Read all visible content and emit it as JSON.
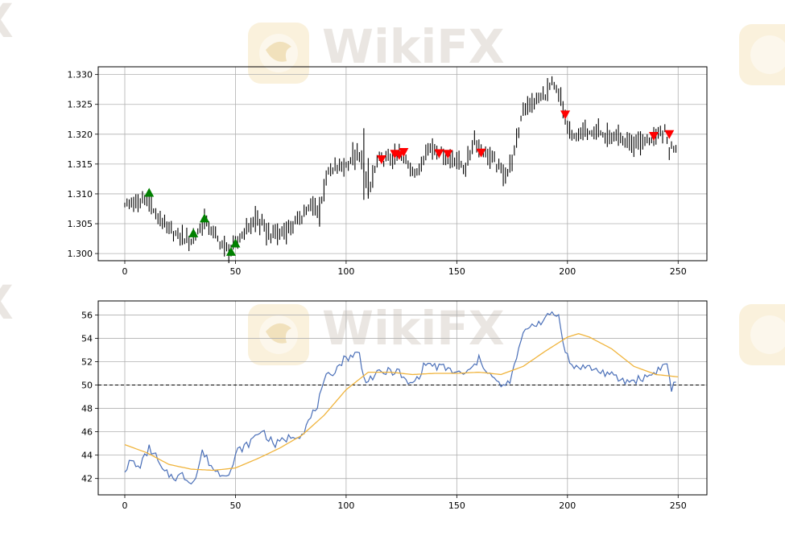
{
  "colors": {
    "bar": "#000000",
    "buy_marker": "#008000",
    "sell_marker": "#ff0000",
    "rsi_line": "#4a6fb8",
    "rsi_ma_line": "#f0b43c",
    "grid": "#b0b0b0",
    "watermark_text": "#d9d3cc",
    "watermark_logo": "#f6e7c4"
  },
  "watermark": {
    "text": "WikiFX"
  },
  "chart_data": [
    {
      "type": "ohlc",
      "title": "",
      "xlabel": "",
      "ylabel": "",
      "xlim": [
        -12,
        263
      ],
      "ylim": [
        1.2988,
        1.3313
      ],
      "xticks": [
        0,
        50,
        100,
        150,
        200,
        250
      ],
      "xtick_labels": [
        "0",
        "50",
        "100",
        "150",
        "200",
        "250"
      ],
      "yticks": [
        1.3,
        1.305,
        1.31,
        1.315,
        1.32,
        1.325,
        1.33
      ],
      "ytick_labels": [
        "1.300",
        "1.305",
        "1.310",
        "1.315",
        "1.320",
        "1.325",
        "1.330"
      ],
      "grid": true,
      "close_anchors": [
        [
          0,
          1.3085
        ],
        [
          5,
          1.308
        ],
        [
          10,
          1.3095
        ],
        [
          14,
          1.3065
        ],
        [
          18,
          1.305
        ],
        [
          22,
          1.3035
        ],
        [
          25,
          1.303
        ],
        [
          30,
          1.302
        ],
        [
          36,
          1.3055
        ],
        [
          40,
          1.3035
        ],
        [
          44,
          1.3015
        ],
        [
          48,
          1.3005
        ],
        [
          52,
          1.3025
        ],
        [
          56,
          1.3045
        ],
        [
          60,
          1.306
        ],
        [
          63,
          1.304
        ],
        [
          66,
          1.303
        ],
        [
          70,
          1.3035
        ],
        [
          76,
          1.3045
        ],
        [
          80,
          1.3065
        ],
        [
          85,
          1.308
        ],
        [
          88,
          1.307
        ],
        [
          91,
          1.313
        ],
        [
          95,
          1.314
        ],
        [
          100,
          1.315
        ],
        [
          104,
          1.3165
        ],
        [
          108,
          1.315
        ],
        [
          110,
          1.31
        ],
        [
          114,
          1.3155
        ],
        [
          120,
          1.316
        ],
        [
          124,
          1.3165
        ],
        [
          128,
          1.315
        ],
        [
          132,
          1.313
        ],
        [
          136,
          1.3175
        ],
        [
          140,
          1.3175
        ],
        [
          146,
          1.316
        ],
        [
          150,
          1.3155
        ],
        [
          154,
          1.3145
        ],
        [
          158,
          1.319
        ],
        [
          162,
          1.317
        ],
        [
          166,
          1.316
        ],
        [
          170,
          1.314
        ],
        [
          173,
          1.3135
        ],
        [
          176,
          1.317
        ],
        [
          180,
          1.3245
        ],
        [
          185,
          1.3255
        ],
        [
          190,
          1.3265
        ],
        [
          193,
          1.3285
        ],
        [
          197,
          1.326
        ],
        [
          199,
          1.3225
        ],
        [
          202,
          1.3195
        ],
        [
          206,
          1.32
        ],
        [
          212,
          1.321
        ],
        [
          218,
          1.3195
        ],
        [
          224,
          1.319
        ],
        [
          230,
          1.3185
        ],
        [
          236,
          1.319
        ],
        [
          240,
          1.3195
        ],
        [
          244,
          1.3205
        ],
        [
          246,
          1.3175
        ],
        [
          249,
          1.318
        ]
      ],
      "buy_signals": [
        {
          "x": 11,
          "y": 1.3102
        },
        {
          "x": 31,
          "y": 1.3034
        },
        {
          "x": 36,
          "y": 1.3059
        },
        {
          "x": 48,
          "y": 1.3003
        },
        {
          "x": 50,
          "y": 1.3017
        }
      ],
      "sell_signals": [
        {
          "x": 116,
          "y": 1.3158
        },
        {
          "x": 122,
          "y": 1.3167
        },
        {
          "x": 124,
          "y": 1.3165
        },
        {
          "x": 126,
          "y": 1.317
        },
        {
          "x": 142,
          "y": 1.3168
        },
        {
          "x": 146,
          "y": 1.3167
        },
        {
          "x": 161,
          "y": 1.3169
        },
        {
          "x": 199,
          "y": 1.3233
        },
        {
          "x": 239,
          "y": 1.3197
        },
        {
          "x": 246,
          "y": 1.32
        }
      ]
    },
    {
      "type": "line",
      "title": "",
      "xlabel": "",
      "ylabel": "",
      "xlim": [
        -12,
        263
      ],
      "ylim": [
        40.6,
        57.2
      ],
      "xticks": [
        0,
        50,
        100,
        150,
        200,
        250
      ],
      "xtick_labels": [
        "0",
        "50",
        "100",
        "150",
        "200",
        "250"
      ],
      "yticks": [
        42,
        44,
        46,
        48,
        50,
        52,
        54,
        56
      ],
      "ytick_labels": [
        "42",
        "44",
        "46",
        "48",
        "50",
        "52",
        "54",
        "56"
      ],
      "grid": true,
      "hline": {
        "y": 50,
        "style": "dashed"
      },
      "series": [
        {
          "role": "oscillator",
          "anchors": [
            [
              0,
              42.8
            ],
            [
              3,
              43.5
            ],
            [
              6,
              42.9
            ],
            [
              9,
              43.8
            ],
            [
              11,
              44.6
            ],
            [
              14,
              43.9
            ],
            [
              17,
              42.6
            ],
            [
              20,
              42.3
            ],
            [
              23,
              42.1
            ],
            [
              26,
              42.3
            ],
            [
              29,
              41.8
            ],
            [
              32,
              42.0
            ],
            [
              35,
              44.3
            ],
            [
              38,
              43.4
            ],
            [
              41,
              42.6
            ],
            [
              44,
              42.4
            ],
            [
              48,
              42.7
            ],
            [
              51,
              44.4
            ],
            [
              55,
              44.8
            ],
            [
              59,
              45.6
            ],
            [
              62,
              46.2
            ],
            [
              65,
              45.4
            ],
            [
              68,
              44.9
            ],
            [
              72,
              45.3
            ],
            [
              76,
              45.7
            ],
            [
              80,
              45.8
            ],
            [
              84,
              47.2
            ],
            [
              87,
              48.3
            ],
            [
              91,
              50.6
            ],
            [
              95,
              51.3
            ],
            [
              99,
              52.2
            ],
            [
              103,
              52.6
            ],
            [
              106,
              52.7
            ],
            [
              108,
              50.5
            ],
            [
              111,
              50.6
            ],
            [
              115,
              51.0
            ],
            [
              120,
              51.2
            ],
            [
              124,
              51.1
            ],
            [
              128,
              50.0
            ],
            [
              132,
              50.5
            ],
            [
              136,
              51.9
            ],
            [
              140,
              51.6
            ],
            [
              144,
              51.5
            ],
            [
              148,
              51.2
            ],
            [
              152,
              50.9
            ],
            [
              156,
              51.2
            ],
            [
              160,
              52.2
            ],
            [
              164,
              51.2
            ],
            [
              168,
              50.2
            ],
            [
              172,
              49.8
            ],
            [
              175,
              50.8
            ],
            [
              179,
              53.8
            ],
            [
              182,
              55.0
            ],
            [
              186,
              55.3
            ],
            [
              190,
              55.6
            ],
            [
              193,
              56.2
            ],
            [
              196,
              55.9
            ],
            [
              199,
              53.0
            ],
            [
              202,
              51.5
            ],
            [
              206,
              51.6
            ],
            [
              210,
              51.5
            ],
            [
              214,
              51.2
            ],
            [
              218,
              51.0
            ],
            [
              222,
              50.6
            ],
            [
              226,
              50.3
            ],
            [
              230,
              50.4
            ],
            [
              234,
              50.6
            ],
            [
              238,
              50.9
            ],
            [
              242,
              51.5
            ],
            [
              245,
              51.8
            ],
            [
              247,
              49.6
            ],
            [
              249,
              50.5
            ]
          ]
        },
        {
          "role": "moving-average",
          "anchors": [
            [
              0,
              44.9
            ],
            [
              10,
              44.2
            ],
            [
              20,
              43.2
            ],
            [
              30,
              42.8
            ],
            [
              40,
              42.7
            ],
            [
              50,
              42.9
            ],
            [
              60,
              43.7
            ],
            [
              70,
              44.6
            ],
            [
              80,
              45.7
            ],
            [
              90,
              47.4
            ],
            [
              100,
              49.6
            ],
            [
              110,
              51.1
            ],
            [
              120,
              51.1
            ],
            [
              130,
              50.9
            ],
            [
              140,
              51.0
            ],
            [
              150,
              51.0
            ],
            [
              160,
              51.1
            ],
            [
              170,
              50.9
            ],
            [
              180,
              51.6
            ],
            [
              190,
              52.9
            ],
            [
              200,
              54.1
            ],
            [
              205,
              54.4
            ],
            [
              210,
              54.1
            ],
            [
              220,
              53.1
            ],
            [
              230,
              51.6
            ],
            [
              240,
              50.9
            ],
            [
              250,
              50.7
            ]
          ]
        }
      ]
    }
  ]
}
